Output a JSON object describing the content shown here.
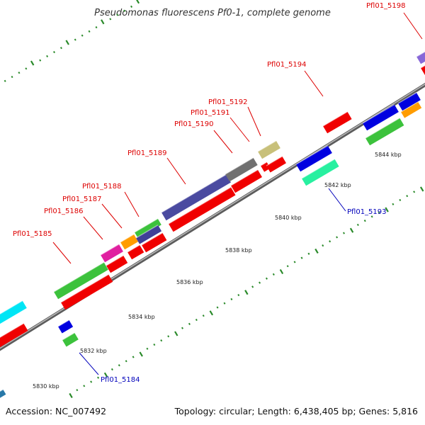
{
  "title": "Pseudomonas fluorescens Pf0-1, complete genome",
  "footer": {
    "accession": "Accession: NC_007492",
    "summary": "Topology: circular; Length: 6,438,405 bp; Genes: 5,816"
  },
  "colors": {
    "label_forward": "#dd0000",
    "label_reverse": "#0000bb",
    "tick": "#2a8a2a",
    "backbone": "#808080"
  },
  "axis": {
    "unit": "kbp",
    "ticks": [
      "5830 kbp",
      "5832 kbp",
      "5834 kbp",
      "5836 kbp",
      "5838 kbp",
      "5840 kbp",
      "5842 kbp",
      "5844 kbp"
    ]
  },
  "gene_labels": [
    {
      "name": "Pfl01_5184",
      "strand": "reverse"
    },
    {
      "name": "Pfl01_5185",
      "strand": "forward"
    },
    {
      "name": "Pfl01_5186",
      "strand": "forward"
    },
    {
      "name": "Pfl01_5187",
      "strand": "forward"
    },
    {
      "name": "Pfl01_5188",
      "strand": "forward"
    },
    {
      "name": "Pfl01_5189",
      "strand": "forward"
    },
    {
      "name": "Pfl01_5190",
      "strand": "forward"
    },
    {
      "name": "Pfl01_5191",
      "strand": "forward"
    },
    {
      "name": "Pfl01_5192",
      "strand": "forward"
    },
    {
      "name": "Pfl01_5193",
      "strand": "reverse"
    },
    {
      "name": "Pfl01_5194",
      "strand": "forward"
    },
    {
      "name": "Pfl01_5198",
      "strand": "forward"
    }
  ]
}
